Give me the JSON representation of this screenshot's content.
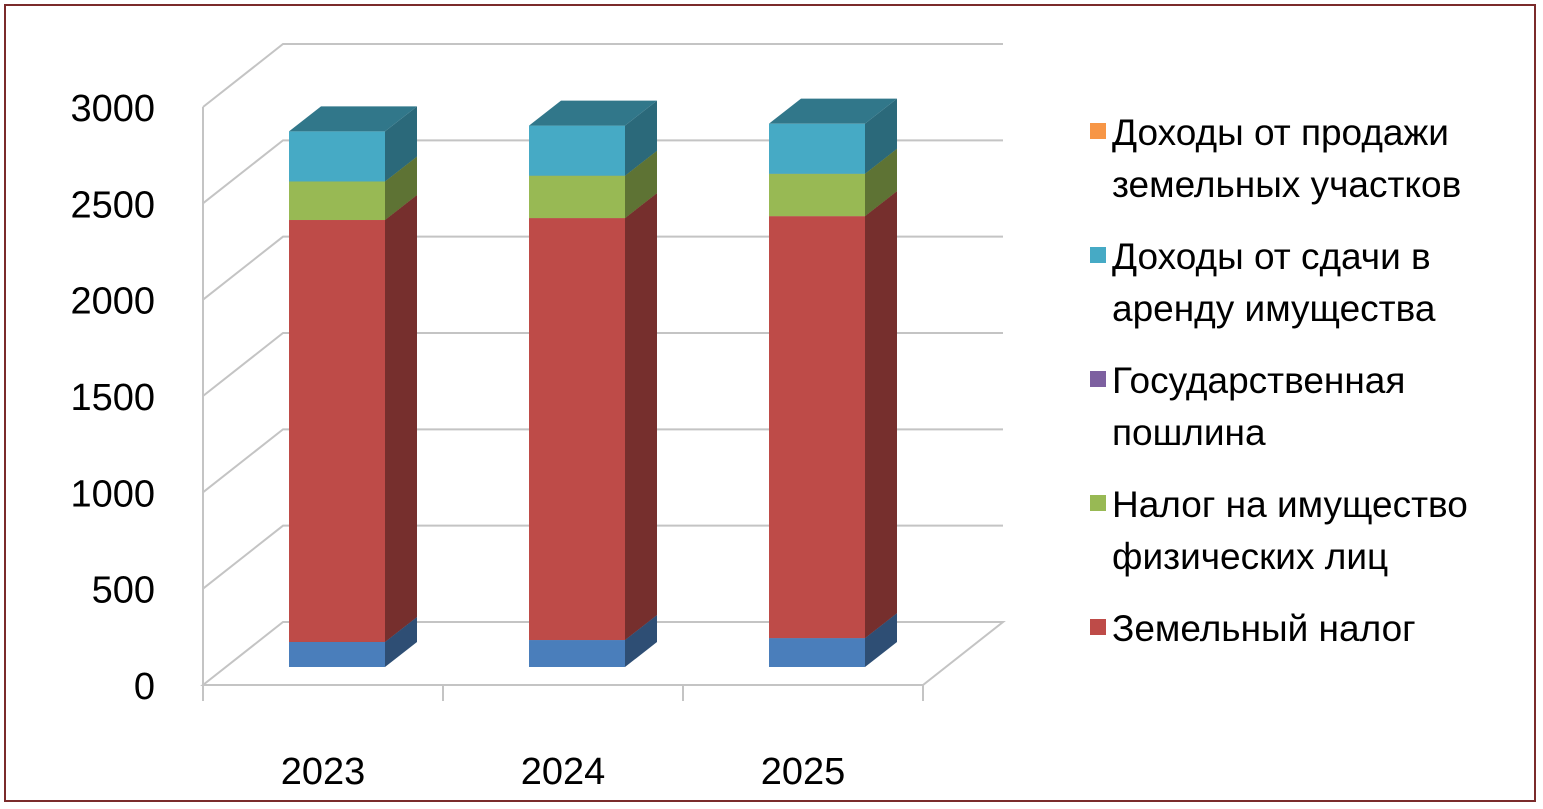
{
  "chart_data": {
    "type": "bar",
    "stacked": true,
    "three_d": true,
    "categories": [
      "2023",
      "2024",
      "2025"
    ],
    "ylim": [
      0,
      3000
    ],
    "yticks": [
      "0",
      "500",
      "1000",
      "1500",
      "2000",
      "2500",
      "3000"
    ],
    "grid": true,
    "legend_position": "right",
    "series": [
      {
        "name": "",
        "color": "#4a7ebb",
        "values": [
          130,
          140,
          150
        ]
      },
      {
        "name": "Земельный налог",
        "color": "#be4b48",
        "values": [
          2190,
          2190,
          2190
        ]
      },
      {
        "name": "Налог на имущество физических лиц",
        "color": "#98b954",
        "values": [
          200,
          220,
          220
        ]
      },
      {
        "name": "Государственная пошлина",
        "color": "#7d60a0",
        "values": [
          0,
          0,
          0
        ]
      },
      {
        "name": "Доходы от сдачи в аренду имущества",
        "color": "#46aac5",
        "values": [
          260,
          260,
          260
        ]
      },
      {
        "name": "Доходы от продажи земельных участков",
        "color": "#f79646",
        "values": [
          0,
          0,
          0
        ]
      }
    ],
    "legend": [
      {
        "series": 5,
        "lines": [
          "Доходы от продажи",
          "земельных участков"
        ]
      },
      {
        "series": 4,
        "lines": [
          "Доходы от сдачи в",
          "аренду имущества"
        ]
      },
      {
        "series": 3,
        "lines": [
          "Государственная",
          "пошлина"
        ]
      },
      {
        "series": 2,
        "lines": [
          "Налог на имущество",
          "физических лиц"
        ]
      },
      {
        "series": 1,
        "lines": [
          "Земельный налог"
        ]
      }
    ]
  }
}
